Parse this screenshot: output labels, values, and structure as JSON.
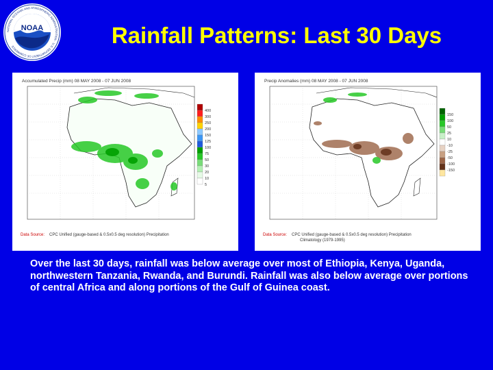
{
  "title": "Rainfall Patterns: Last 30 Days",
  "logo": {
    "icon": "noaa-logo",
    "letters": "NOAA",
    "ring_text": "NATIONAL OCEANIC AND ATMOSPHERIC ADMINISTRATION · U.S. DEPARTMENT OF COMMERCE"
  },
  "maps": {
    "left": {
      "header": "Accumulated Precip (mm) 08 MAY 2008 - 07 JUN 2008",
      "source_label": "Data Source:",
      "source_text": "CPC Unified (gauge-based & 0.5x0.5 deg resolution) Precipitation",
      "legend_values": [
        "400",
        "300",
        "250",
        "200",
        "150",
        "125",
        "100",
        "75",
        "50",
        "30",
        "20",
        "10",
        "5"
      ],
      "legend_colors": [
        "#b00000",
        "#ff1e1e",
        "#ff8c00",
        "#ffd200",
        "#8cc8ff",
        "#3c96f5",
        "#1e5adc",
        "#00a000",
        "#28c828",
        "#78dc78",
        "#b4f0b4",
        "#e6fae6",
        "#ffffff"
      ]
    },
    "right": {
      "header": "Precip Anomalies (mm) 08 MAY 2008 - 07 JUN 2008",
      "source_label": "Data Source:",
      "source_text": "CPC Unified (gauge-based & 0.5x0.5 deg resolution) Precipitation",
      "climo_text": "Climatology (1979-1995)",
      "legend_values": [
        "150",
        "100",
        "50",
        "25",
        "10",
        "-10",
        "-25",
        "-50",
        "-100",
        "-150"
      ],
      "legend_colors": [
        "#006400",
        "#00a000",
        "#28c828",
        "#78dc78",
        "#c8f0c8",
        "#ffffff",
        "#e6d2c3",
        "#c8a082",
        "#9b6446",
        "#643219",
        "#ffe6a0"
      ]
    }
  },
  "description": "Over the last 30 days, rainfall was below average over most of Ethiopia, Kenya, Uganda, northwestern Tanzania, Rwanda, and Burundi.  Rainfall was also below average over portions of central Africa and along portions of the Gulf of Guinea coast."
}
